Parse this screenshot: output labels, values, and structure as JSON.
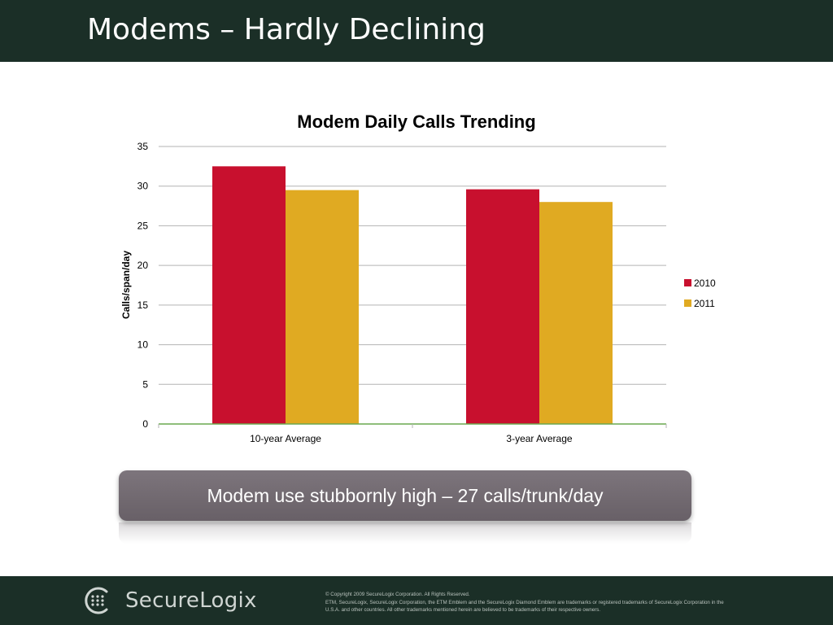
{
  "slide": {
    "title": "Modems – Hardly Declining"
  },
  "chart_data": {
    "type": "bar",
    "title": "Modem Daily Calls Trending",
    "xlabel": "",
    "ylabel": "Calls/span/day",
    "categories": [
      "10-year Average",
      "3-year Average"
    ],
    "series": [
      {
        "name": "2010",
        "values": [
          32.5,
          29.6
        ],
        "color": "#c8102e"
      },
      {
        "name": "2011",
        "values": [
          29.5,
          28.0
        ],
        "color": "#e0aa22"
      }
    ],
    "ylim": [
      0,
      35
    ],
    "yticks": [
      0,
      5,
      10,
      15,
      20,
      25,
      30,
      35
    ],
    "grid": true,
    "legend": "right"
  },
  "callout": {
    "text": "Modem use stubbornly high – 27 calls/trunk/day"
  },
  "footer": {
    "logo_text": "SecureLogix",
    "copyright_line1": "© Copyright 2009 SecureLogix Corporation.  All Rights Reserved.",
    "copyright_line2": "ETM, SecureLogix, SecureLogix Corporation, the ETM Emblem and the SecureLogix Diamond Emblem are trademarks or registered trademarks of SecureLogix Corporation  in the U.S.A. and other countries. All other trademarks mentioned herein are believed to be trademarks of their respective owners."
  },
  "colors": {
    "header_bg": "#1b2f27",
    "footer_bg": "#1b2f27",
    "callout_bg": "#746c73",
    "axis_line": "#6aa84f",
    "gridline": "#b3b3b3"
  }
}
